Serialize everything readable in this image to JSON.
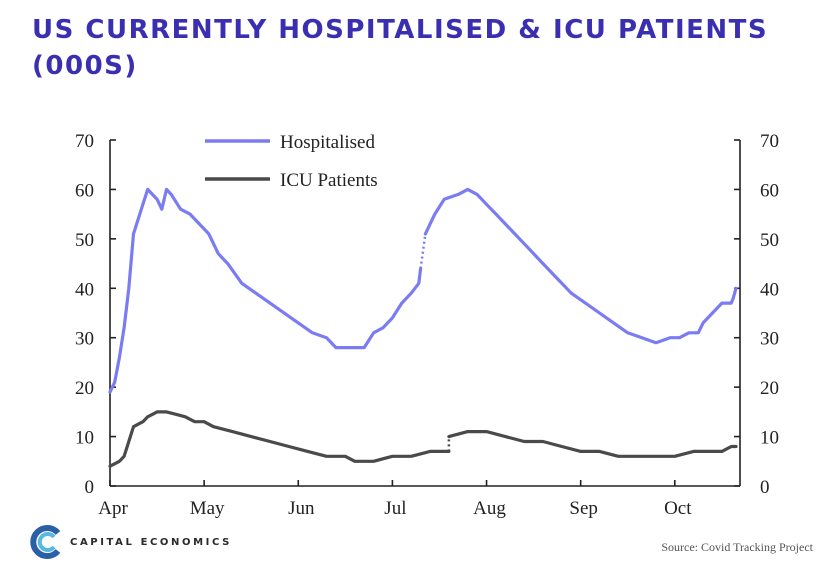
{
  "title": "US CURRENTLY HOSPITALISED & ICU PATIENTS (000S)",
  "source": "Source: Covid Tracking Project",
  "logo": {
    "text": "CAPITAL ECONOMICS",
    "icon": "capital-economics-logo-icon"
  },
  "colors": {
    "title": "#3a2fb0",
    "hospitalised": "#7b7cf2",
    "icu": "#4a4a4a",
    "axis": "#222222"
  },
  "chart_data": {
    "type": "line",
    "title": "US CURRENTLY HOSPITALISED & ICU PATIENTS (000S)",
    "x_categories": [
      "Apr",
      "May",
      "Jun",
      "Jul",
      "Aug",
      "Sep",
      "Oct"
    ],
    "x_unit": "month index (0 = Apr 1, 2020)",
    "ylim_left": [
      0,
      70
    ],
    "ylim_right": [
      0,
      70
    ],
    "yticks": [
      0,
      10,
      20,
      30,
      40,
      50,
      60,
      70
    ],
    "xlim": [
      0,
      6.65
    ],
    "grid": false,
    "legend_position": "top-left",
    "series": [
      {
        "name": "Hospitalised",
        "color": "#7b7cf2",
        "segments": [
          [
            [
              0,
              19
            ],
            [
              0.05,
              21
            ],
            [
              0.1,
              26
            ],
            [
              0.15,
              32
            ],
            [
              0.2,
              40
            ],
            [
              0.25,
              51
            ],
            [
              0.3,
              54
            ],
            [
              0.35,
              57
            ],
            [
              0.4,
              60
            ],
            [
              0.45,
              59
            ],
            [
              0.5,
              58
            ],
            [
              0.55,
              56
            ],
            [
              0.6,
              60
            ],
            [
              0.65,
              59
            ],
            [
              0.75,
              56
            ],
            [
              0.85,
              55
            ],
            [
              0.95,
              53
            ],
            [
              1.05,
              51
            ],
            [
              1.15,
              47
            ],
            [
              1.25,
              45
            ],
            [
              1.4,
              41
            ],
            [
              1.55,
              39
            ],
            [
              1.7,
              37
            ],
            [
              1.85,
              35
            ],
            [
              2.0,
              33
            ],
            [
              2.15,
              31
            ],
            [
              2.3,
              30
            ],
            [
              2.4,
              28
            ],
            [
              2.55,
              28
            ],
            [
              2.7,
              28
            ],
            [
              2.8,
              31
            ],
            [
              2.9,
              32
            ],
            [
              3.0,
              34
            ],
            [
              3.1,
              37
            ],
            [
              3.2,
              39
            ],
            [
              3.28,
              41
            ],
            [
              3.3,
              44
            ]
          ],
          [
            [
              3.35,
              51
            ],
            [
              3.45,
              55
            ],
            [
              3.55,
              58
            ],
            [
              3.7,
              59
            ],
            [
              3.8,
              60
            ],
            [
              3.9,
              59
            ],
            [
              4.0,
              57
            ],
            [
              4.1,
              55
            ],
            [
              4.2,
              53
            ],
            [
              4.3,
              51
            ],
            [
              4.45,
              48
            ],
            [
              4.6,
              45
            ],
            [
              4.75,
              42
            ],
            [
              4.9,
              39
            ],
            [
              5.05,
              37
            ],
            [
              5.2,
              35
            ],
            [
              5.35,
              33
            ],
            [
              5.5,
              31
            ],
            [
              5.65,
              30
            ],
            [
              5.8,
              29
            ],
            [
              5.95,
              30
            ],
            [
              6.05,
              30
            ],
            [
              6.15,
              31
            ],
            [
              6.25,
              31
            ],
            [
              6.3,
              33
            ],
            [
              6.4,
              35
            ],
            [
              6.5,
              37
            ],
            [
              6.6,
              37
            ],
            [
              6.62,
              38
            ],
            [
              6.65,
              40
            ]
          ]
        ]
      },
      {
        "name": "ICU Patients",
        "color": "#4a4a4a",
        "segments": [
          [
            [
              0,
              4
            ],
            [
              0.1,
              5
            ],
            [
              0.15,
              6
            ],
            [
              0.2,
              9
            ],
            [
              0.25,
              12
            ],
            [
              0.35,
              13
            ],
            [
              0.4,
              14
            ],
            [
              0.5,
              15
            ],
            [
              0.6,
              15
            ],
            [
              0.7,
              14.5
            ],
            [
              0.8,
              14
            ],
            [
              0.9,
              13
            ],
            [
              1.0,
              13
            ],
            [
              1.1,
              12
            ],
            [
              1.3,
              11
            ],
            [
              1.5,
              10
            ],
            [
              1.7,
              9
            ],
            [
              1.9,
              8
            ],
            [
              2.1,
              7
            ],
            [
              2.3,
              6
            ],
            [
              2.5,
              6
            ],
            [
              2.6,
              5
            ],
            [
              2.8,
              5
            ],
            [
              3.0,
              6
            ],
            [
              3.2,
              6
            ],
            [
              3.4,
              7
            ],
            [
              3.6,
              7
            ]
          ],
          [
            [
              3.6,
              10
            ],
            [
              3.8,
              11
            ],
            [
              4.0,
              11
            ],
            [
              4.2,
              10
            ],
            [
              4.4,
              9
            ],
            [
              4.6,
              9
            ],
            [
              4.8,
              8
            ],
            [
              5.0,
              7
            ],
            [
              5.2,
              7
            ],
            [
              5.4,
              6
            ],
            [
              5.6,
              6
            ],
            [
              5.8,
              6
            ],
            [
              6.0,
              6
            ],
            [
              6.2,
              7
            ],
            [
              6.4,
              7
            ],
            [
              6.5,
              7
            ],
            [
              6.6,
              8
            ],
            [
              6.65,
              8
            ]
          ]
        ]
      }
    ]
  }
}
